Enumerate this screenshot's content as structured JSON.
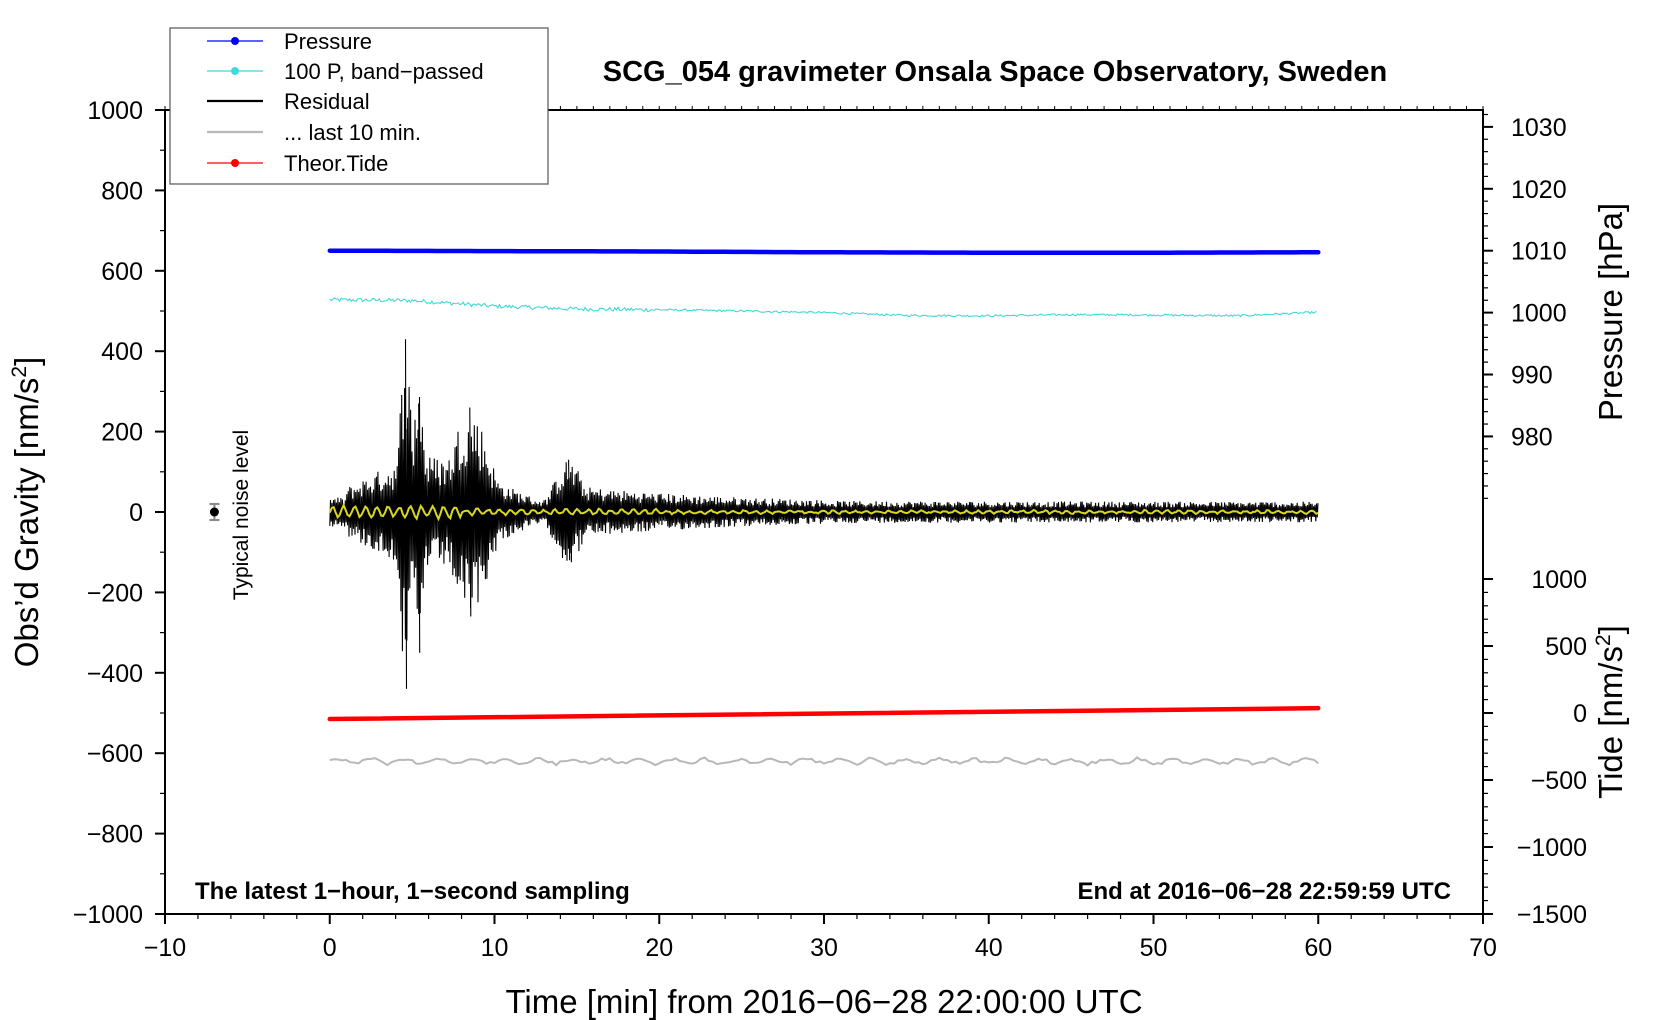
{
  "chart_data": {
    "type": "line",
    "title": "SCG_054 gravimeter Onsala Space Observatory, Sweden",
    "xlabel": "Time [min] from 2016−06−28 22:00:00 UTC",
    "ylabel_left": "Obs’d Gravity [nm/s",
    "ylabel_left_sup": "2",
    "ylabel_left_close": "]",
    "ylabel_right_pressure": "Pressure [hPa]",
    "ylabel_right_tide": "Tide [nm/s",
    "ylabel_right_tide_sup": "2",
    "ylabel_right_tide_close": "]",
    "xlim": [
      -10,
      70
    ],
    "ylim": [
      -1000,
      1000
    ],
    "x_ticks": [
      {
        "v": -10,
        "label": "−10"
      },
      {
        "v": 0,
        "label": "0"
      },
      {
        "v": 10,
        "label": "10"
      },
      {
        "v": 20,
        "label": "20"
      },
      {
        "v": 30,
        "label": "30"
      },
      {
        "v": 40,
        "label": "40"
      },
      {
        "v": 50,
        "label": "50"
      },
      {
        "v": 60,
        "label": "60"
      },
      {
        "v": 70,
        "label": "70"
      }
    ],
    "y_ticks": [
      {
        "v": 1000,
        "label": "1000"
      },
      {
        "v": 800,
        "label": "800"
      },
      {
        "v": 600,
        "label": "600"
      },
      {
        "v": 400,
        "label": "400"
      },
      {
        "v": 200,
        "label": "200"
      },
      {
        "v": 0,
        "label": "0"
      },
      {
        "v": -200,
        "label": "−200"
      },
      {
        "v": -400,
        "label": "−400"
      },
      {
        "v": -600,
        "label": "−600"
      },
      {
        "v": -800,
        "label": "−800"
      },
      {
        "v": -1000,
        "label": "−1000"
      }
    ],
    "pressure_axis": {
      "map": {
        "hpa_ref": 1010,
        "left_ref": 650,
        "left_per_hpa": 15.4
      },
      "ticks": [
        {
          "v": 1030,
          "label": "1030"
        },
        {
          "v": 1020,
          "label": "1020"
        },
        {
          "v": 1010,
          "label": "1010"
        },
        {
          "v": 1000,
          "label": "1000"
        },
        {
          "v": 990,
          "label": "990"
        },
        {
          "v": 980,
          "label": "980"
        }
      ]
    },
    "tide_axis": {
      "map": {
        "tide_ref": 0,
        "left_ref": -500,
        "left_per_unit": 0.3333
      },
      "ticks": [
        {
          "v": 1000,
          "label": "1000"
        },
        {
          "v": 500,
          "label": "500"
        },
        {
          "v": 0,
          "label": "0"
        },
        {
          "v": -500,
          "label": "−500"
        },
        {
          "v": -1000,
          "label": "−1000"
        },
        {
          "v": -1500,
          "label": "−1500"
        }
      ]
    },
    "series": [
      {
        "name": "Pressure",
        "color": "#0000ff",
        "style": "thick",
        "x": [
          0,
          10,
          20,
          30,
          40,
          50,
          60
        ],
        "values": [
          650,
          649,
          648,
          646,
          645,
          645,
          646
        ]
      },
      {
        "name": "100 P, band−passed",
        "color": "#40d8d8",
        "style": "thin-noisy",
        "x": [
          0,
          5,
          10,
          15,
          20,
          25,
          30,
          35,
          40,
          45,
          50,
          55,
          60
        ],
        "values": [
          528,
          526,
          512,
          505,
          503,
          500,
          496,
          489,
          488,
          491,
          490,
          488,
          497
        ]
      },
      {
        "name": "Residual",
        "color": "#000000",
        "style": "seismic",
        "event_start_min": 0,
        "end_min": 60,
        "peaks": [
          {
            "x": 4.6,
            "max": 430,
            "min": -440
          },
          {
            "x": 5.4,
            "max": 270,
            "min": -350
          },
          {
            "x": 8.5,
            "max": 260,
            "min": -260
          },
          {
            "x": 14.5,
            "max": 130,
            "min": -120
          }
        ]
      },
      {
        "name": "... last 10 min.",
        "color": "#b8b8b8",
        "style": "thin-wavy",
        "x": [
          0,
          60
        ],
        "values": [
          -620,
          -620
        ]
      },
      {
        "name": "Theor.Tide",
        "color": "#ff0000",
        "style": "thick",
        "x": [
          0,
          60
        ],
        "values": [
          -515,
          -488
        ]
      }
    ],
    "filtered_trace_color": "#d8d820",
    "noise_marker": {
      "x": -7,
      "y": 0,
      "err": 20,
      "label": "Typical noise level"
    },
    "footer_left": "The latest 1−hour, 1−second sampling",
    "footer_right": "End at 2016−06−28 22:59:59 UTC"
  }
}
